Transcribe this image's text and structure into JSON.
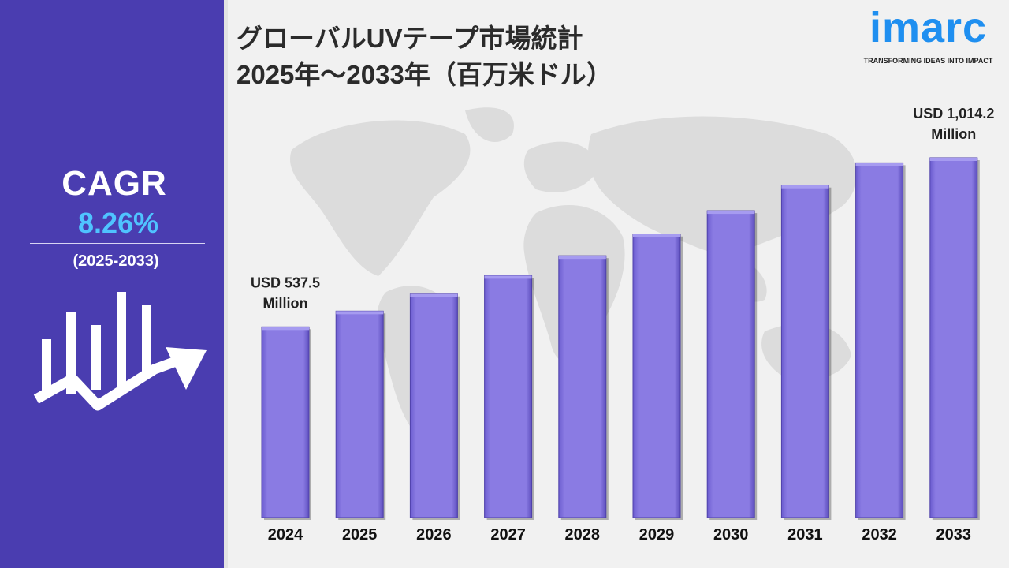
{
  "header": {
    "title_line1": "グローバルUVテープ市場統計",
    "title_line2": "2025年～2033年（百万米ドル）"
  },
  "logo": {
    "word": "imarc",
    "tagline": "TRANSFORMING IDEAS INTO IMPACT"
  },
  "sidebar": {
    "cagr_label": "CAGR",
    "cagr_value": "8.26%",
    "period": "(2025-2033)",
    "icon": "growth-chart-arrow-icon"
  },
  "colors": {
    "sidebar": "#4a3db0",
    "bar": "#8170dd",
    "accent": "#4fc3ff",
    "logo": "#1f8ff0"
  },
  "chart_data": {
    "type": "bar",
    "categories": [
      "2024",
      "2025",
      "2026",
      "2027",
      "2028",
      "2029",
      "2030",
      "2031",
      "2032",
      "2033"
    ],
    "values": [
      537.5,
      582,
      630,
      682,
      738,
      799,
      865,
      937,
      1000,
      1014.2
    ],
    "annotations": [
      {
        "category": "2024",
        "line1": "USD 537.5",
        "line2": "Million"
      },
      {
        "category": "2033",
        "line1": "USD 1,014.2",
        "line2": "Million"
      }
    ],
    "xlabel": "",
    "ylabel": "",
    "grid": false,
    "legend": "none"
  }
}
